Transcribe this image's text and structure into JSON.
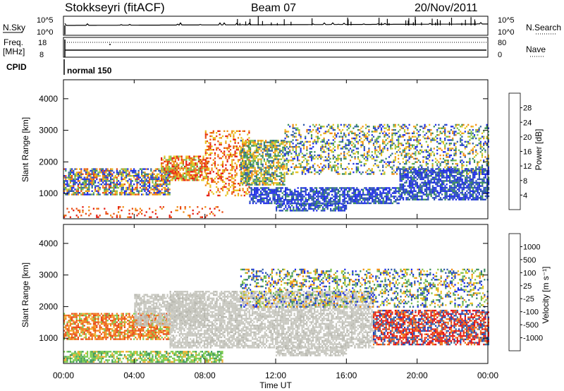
{
  "header": {
    "station": "Stokkseyri (fitACF)",
    "beam": "Beam 07",
    "date": "20/Nov/2011"
  },
  "status_panels": {
    "nsky_label": "N.Sky",
    "nsky_ticks": [
      "10^5",
      "10^0"
    ],
    "nsearch_label": "N.Search",
    "nsearch_ticks": [
      "10^5",
      "10^0"
    ],
    "freq_label": "Freq.",
    "freq_unit": "[MHz]",
    "freq_ticks": [
      "18",
      "8"
    ],
    "nave_label": "Nave",
    "nave_ticks": [
      "80",
      "0"
    ],
    "cpid_label": "CPID",
    "cpid_value": "normal 150"
  },
  "x_axis": {
    "label": "Time UT",
    "ticks": [
      "00:00",
      "04:00",
      "08:00",
      "12:00",
      "16:00",
      "20:00",
      "00:00"
    ]
  },
  "chart_data": [
    {
      "type": "heatmap",
      "name": "power",
      "ylabel": "Slant Range [km]",
      "yticks": [
        "1000",
        "2000",
        "3000",
        "4000"
      ],
      "ylim": [
        200,
        4600
      ],
      "xlim_hours": [
        0,
        24
      ],
      "colorbar": {
        "label": "Power [dB]",
        "ticks": [
          "4",
          "8",
          "12",
          "16",
          "20",
          "24",
          "28"
        ],
        "range": [
          0,
          32
        ],
        "colors": [
          "#1e2ee6",
          "#2e59a8",
          "#3a8f5c",
          "#7dc04a",
          "#e8c21e",
          "#f08a10",
          "#e84a10",
          "#e51b10"
        ]
      },
      "echo_regions": [
        {
          "t": [
            0.0,
            6.0
          ],
          "r": [
            950,
            1800
          ],
          "level": "mixed-high"
        },
        {
          "t": [
            5.5,
            8.2
          ],
          "r": [
            1400,
            2200
          ],
          "level": "low-mid"
        },
        {
          "t": [
            8.0,
            10.5
          ],
          "r": [
            950,
            3000
          ],
          "level": "low"
        },
        {
          "t": [
            10.0,
            12.5
          ],
          "r": [
            1300,
            2700
          ],
          "level": "mid"
        },
        {
          "t": [
            10.5,
            19.0
          ],
          "r": [
            700,
            1200
          ],
          "level": "high"
        },
        {
          "t": [
            12.0,
            16.0
          ],
          "r": [
            450,
            700
          ],
          "level": "high"
        },
        {
          "t": [
            12.5,
            24.0
          ],
          "r": [
            1600,
            3200
          ],
          "level": "mixed"
        },
        {
          "t": [
            19.0,
            24.0
          ],
          "r": [
            800,
            1800
          ],
          "level": "high"
        },
        {
          "t": [
            0.0,
            9.0
          ],
          "r": [
            250,
            600
          ],
          "level": "low-scatter"
        }
      ]
    },
    {
      "type": "heatmap",
      "name": "velocity",
      "ylabel": "Slant Range [km]",
      "yticks": [
        "1000",
        "2000",
        "3000",
        "4000"
      ],
      "ylim": [
        200,
        4600
      ],
      "xlim_hours": [
        0,
        24
      ],
      "colorbar": {
        "label": "Velocity  [m s⁻¹]",
        "ticks": [
          "1000",
          "500",
          "100",
          "25",
          "-25",
          "-100",
          "-500",
          "-1000"
        ],
        "colors": [
          "#1f3fb8",
          "#3a6f9e",
          "#3f9a5c",
          "#7ccc4e",
          "#c8c8c0",
          "#f0b030",
          "#f07a18",
          "#e84a18",
          "#e51414"
        ]
      },
      "echo_regions": [
        {
          "t": [
            0.0,
            6.0
          ],
          "r": [
            950,
            1800
          ],
          "level": "negative"
        },
        {
          "t": [
            4.0,
            8.0
          ],
          "r": [
            1400,
            2400
          ],
          "level": "ground-scatter"
        },
        {
          "t": [
            6.0,
            17.5
          ],
          "r": [
            700,
            2500
          ],
          "level": "ground-scatter"
        },
        {
          "t": [
            12.0,
            16.0
          ],
          "r": [
            450,
            750
          ],
          "level": "ground-scatter"
        },
        {
          "t": [
            17.5,
            24.0
          ],
          "r": [
            800,
            1900
          ],
          "level": "negative-strong"
        },
        {
          "t": [
            10.0,
            24.0
          ],
          "r": [
            2000,
            3200
          ],
          "level": "mixed"
        },
        {
          "t": [
            0.0,
            9.0
          ],
          "r": [
            250,
            600
          ],
          "level": "positive-low"
        }
      ]
    }
  ]
}
